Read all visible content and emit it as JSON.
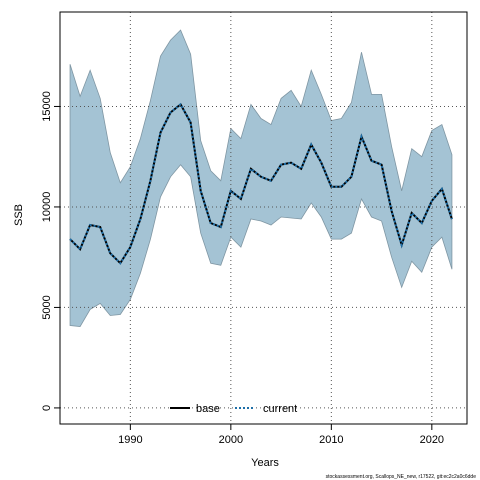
{
  "chart_data": {
    "type": "line",
    "xlabel": "Years",
    "ylabel": "SSB",
    "xlim": [
      1983,
      2023.5
    ],
    "ylim": [
      -800,
      19700
    ],
    "xticks": [
      1990,
      2000,
      2010,
      2020
    ],
    "yticks": [
      0,
      5000,
      10000,
      15000
    ],
    "grid": true,
    "x": [
      1984,
      1985,
      1986,
      1987,
      1988,
      1989,
      1990,
      1991,
      1992,
      1993,
      1994,
      1995,
      1996,
      1997,
      1998,
      1999,
      2000,
      2001,
      2002,
      2003,
      2004,
      2005,
      2006,
      2007,
      2008,
      2009,
      2010,
      2011,
      2012,
      2013,
      2014,
      2015,
      2016,
      2017,
      2018,
      2019,
      2020,
      2021,
      2022
    ],
    "band": {
      "color": "#a4c3d4",
      "upper": [
        17100,
        15500,
        16800,
        15400,
        12700,
        11200,
        12000,
        13400,
        15300,
        17500,
        18300,
        18800,
        17600,
        13300,
        11800,
        11300,
        13900,
        13400,
        15100,
        14400,
        14100,
        15400,
        15800,
        15000,
        16800,
        15600,
        14300,
        14400,
        15200,
        17700,
        15600,
        15600,
        13000,
        10800,
        12900,
        12500,
        13800,
        14100,
        12600
      ],
      "lower": [
        4100,
        4050,
        4900,
        5200,
        4600,
        4650,
        5400,
        6700,
        8400,
        10500,
        11500,
        12100,
        11500,
        8700,
        7200,
        7100,
        8500,
        8000,
        9400,
        9300,
        9100,
        9500,
        9450,
        9400,
        10200,
        9500,
        8400,
        8400,
        8700,
        10400,
        9500,
        9300,
        7500,
        6000,
        7300,
        6750,
        8000,
        8500,
        6900
      ]
    },
    "series": [
      {
        "name": "base",
        "color": "#000000",
        "style": "solid",
        "values": [
          8400,
          7900,
          9100,
          9000,
          7700,
          7200,
          8000,
          9400,
          11300,
          13700,
          14700,
          15100,
          14200,
          10800,
          9200,
          9000,
          10800,
          10400,
          11900,
          11500,
          11300,
          12100,
          12200,
          11900,
          13100,
          12200,
          11000,
          11000,
          11500,
          13500,
          12300,
          12100,
          9800,
          8100,
          9700,
          9200,
          10300,
          10900,
          9400
        ]
      },
      {
        "name": "current",
        "color": "#1e6fa8",
        "style": "dotted",
        "values": [
          8400,
          7900,
          9100,
          9000,
          7700,
          7200,
          8000,
          9400,
          11300,
          13700,
          14700,
          15100,
          14200,
          10800,
          9200,
          9000,
          10800,
          10400,
          11900,
          11500,
          11300,
          12100,
          12200,
          11900,
          13100,
          12200,
          11000,
          11000,
          11500,
          13500,
          12300,
          12100,
          9800,
          8100,
          9700,
          9200,
          10300,
          10900,
          9400
        ]
      }
    ],
    "legend": {
      "placement": "bottom-center"
    }
  },
  "footnote": "stockassessment.org, Scallops_NE_new, r17522, git:ec2c2a0c6dde"
}
